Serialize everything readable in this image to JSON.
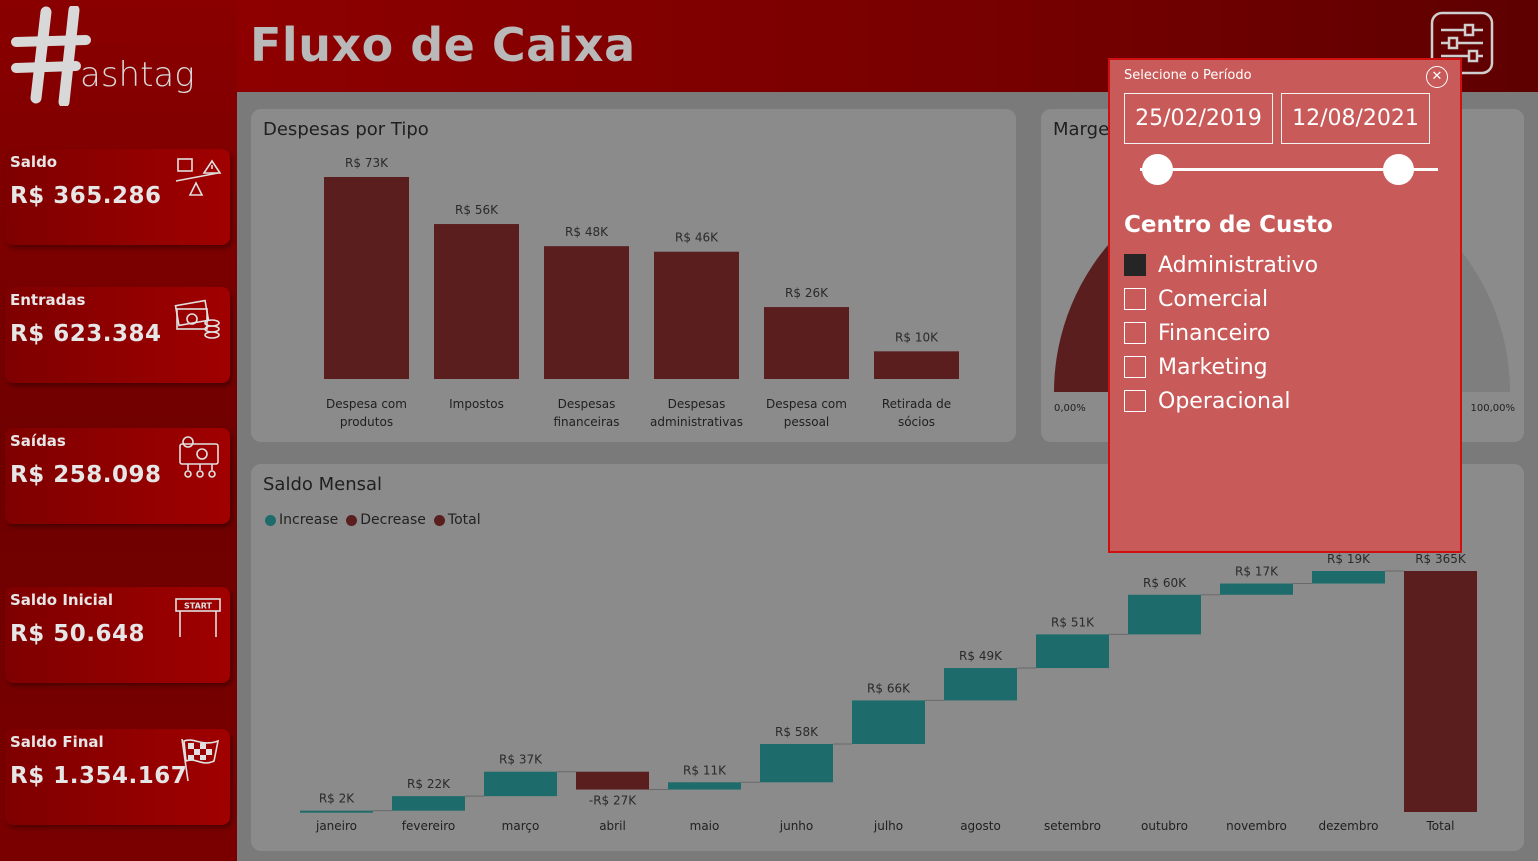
{
  "header": {
    "title": "Fluxo de Caixa"
  },
  "logo": {
    "text": "ashtag"
  },
  "sidebar": {
    "cards": [
      {
        "label": "Saldo",
        "value": "R$ 365.286",
        "icon": "balance-scale-icon"
      },
      {
        "label": "Entradas",
        "value": "R$ 623.384",
        "icon": "money-stack-icon"
      },
      {
        "label": "Saídas",
        "value": "R$ 258.098",
        "icon": "money-out-icon"
      },
      {
        "label": "Saldo Inicial",
        "value": "R$ 50.648",
        "icon": "start-banner-icon"
      },
      {
        "label": "Saldo Final",
        "value": "R$ 1.354.167",
        "icon": "checkered-flag-icon"
      }
    ]
  },
  "expenses_panel": {
    "title": "Despesas por Tipo"
  },
  "margin_panel": {
    "title": "Margem",
    "min_label": "0,00%",
    "max_label": "100,00%"
  },
  "monthly_panel": {
    "title": "Saldo Mensal",
    "legend": [
      {
        "label": "Increase",
        "color": "#1e6b6b"
      },
      {
        "label": "Decrease",
        "color": "#5a1e1e"
      },
      {
        "label": "Total",
        "color": "#5a1e1e"
      }
    ]
  },
  "slicer": {
    "title": "Selecione o Período",
    "start_date": "25/02/2019",
    "end_date": "12/08/2021",
    "cost_center_title": "Centro de Custo",
    "cost_centers": [
      {
        "label": "Administrativo",
        "checked": true
      },
      {
        "label": "Comercial",
        "checked": false
      },
      {
        "label": "Financeiro",
        "checked": false
      },
      {
        "label": "Marketing",
        "checked": false
      },
      {
        "label": "Operacional",
        "checked": false
      }
    ]
  },
  "chart_data": [
    {
      "type": "bar",
      "title": "Despesas por Tipo",
      "categories": [
        "Despesa com produtos",
        "Impostos",
        "Despesas financeiras",
        "Despesas administrativas",
        "Despesa com pessoal",
        "Retirada de sócios"
      ],
      "category_lines": [
        [
          "Despesa com",
          "produtos"
        ],
        [
          "Impostos"
        ],
        [
          "Despesas",
          "financeiras"
        ],
        [
          "Despesas",
          "administrativas"
        ],
        [
          "Despesa com",
          "pessoal"
        ],
        [
          "Retirada de",
          "sócios"
        ]
      ],
      "values": [
        73,
        56,
        48,
        46,
        26,
        10
      ],
      "data_labels": [
        "R$ 73K",
        "R$ 56K",
        "R$ 48K",
        "R$ 46K",
        "R$ 26K",
        "R$ 10K"
      ],
      "unit": "K",
      "color": "#5a1e1e"
    },
    {
      "type": "bar",
      "subtype": "waterfall",
      "title": "Saldo Mensal",
      "categories": [
        "janeiro",
        "fevereiro",
        "março",
        "abril",
        "maio",
        "junho",
        "julho",
        "agosto",
        "setembro",
        "outubro",
        "novembro",
        "dezembro",
        "Total"
      ],
      "values": [
        2,
        22,
        37,
        -27,
        11,
        58,
        66,
        49,
        51,
        60,
        17,
        19,
        365
      ],
      "data_labels": [
        "R$ 2K",
        "R$ 22K",
        "R$ 37K",
        "-R$ 27K",
        "R$ 11K",
        "R$ 58K",
        "R$ 66K",
        "R$ 49K",
        "R$ 51K",
        "R$ 60K",
        "R$ 17K",
        "R$ 19K",
        "R$ 365K"
      ],
      "unit": "K",
      "colors": {
        "increase": "#1e6b6b",
        "decrease": "#5a1e1e",
        "total": "#5a1e1e"
      }
    }
  ]
}
